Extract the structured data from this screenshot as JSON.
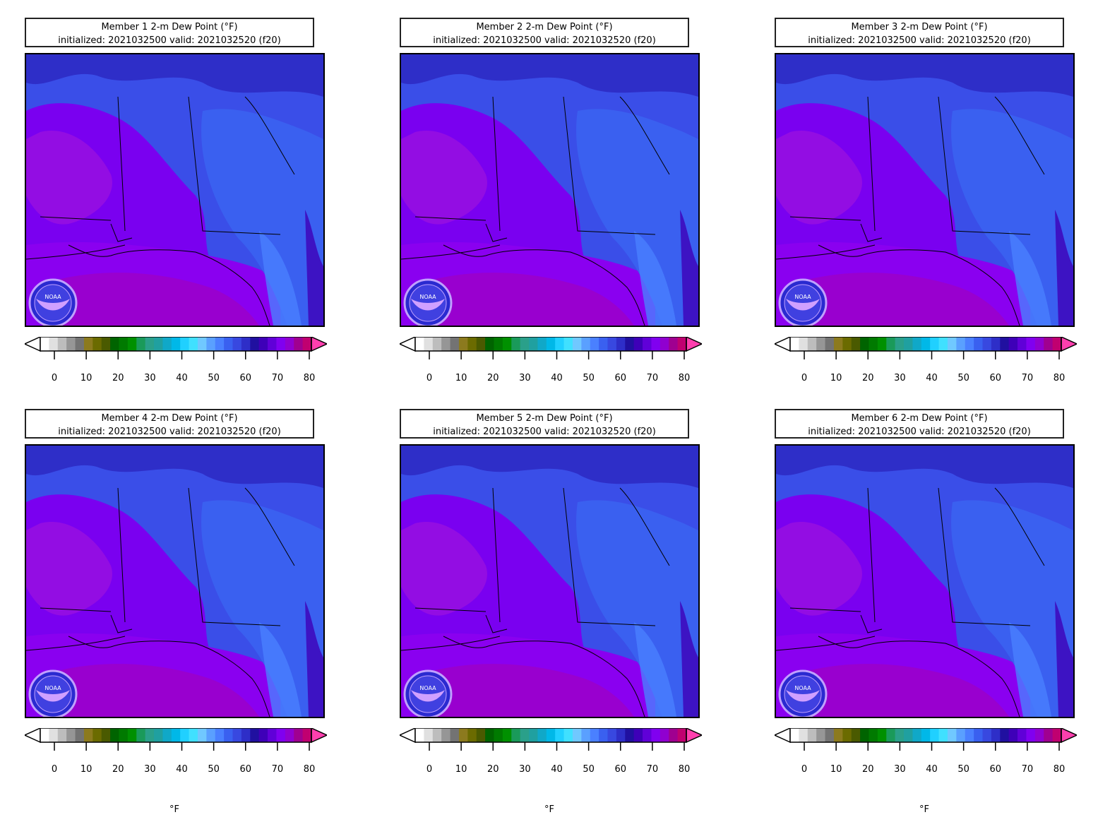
{
  "panels": [
    {
      "title_line1": "Member 1 2-m Dew Point (°F)",
      "title_line2": "initialized: 2021032500 valid: 2021032520 (f20)",
      "unit": ""
    },
    {
      "title_line1": "Member 2 2-m Dew Point (°F)",
      "title_line2": "initialized: 2021032500 valid: 2021032520 (f20)",
      "unit": ""
    },
    {
      "title_line1": "Member 3 2-m Dew Point (°F)",
      "title_line2": "initialized: 2021032500 valid: 2021032520 (f20)",
      "unit": ""
    },
    {
      "title_line1": "Member 4 2-m Dew Point (°F)",
      "title_line2": "initialized: 2021032500 valid: 2021032520 (f20)",
      "unit": "°F"
    },
    {
      "title_line1": "Member 5 2-m Dew Point (°F)",
      "title_line2": "initialized: 2021032500 valid: 2021032520 (f20)",
      "unit": "°F"
    },
    {
      "title_line1": "Member 6 2-m Dew Point (°F)",
      "title_line2": "initialized: 2021032500 valid: 2021032520 (f20)",
      "unit": "°F"
    }
  ],
  "colorbar": {
    "ticks": [
      "0",
      "10",
      "20",
      "30",
      "40",
      "50",
      "60",
      "70",
      "80"
    ],
    "colors": [
      "#ffffff",
      "#e0e0e0",
      "#bdbdbd",
      "#969696",
      "#737373",
      "#8c7a1e",
      "#6b6b00",
      "#4a5a00",
      "#006400",
      "#007a00",
      "#009000",
      "#1a9a5a",
      "#2aa08a",
      "#20a0a0",
      "#10a8c8",
      "#00b8e8",
      "#20d0ff",
      "#40e0ff",
      "#70c8ff",
      "#5aa0ff",
      "#4a80ff",
      "#3a60f0",
      "#3848e0",
      "#2e2ec8",
      "#2010a0",
      "#3e00b8",
      "#6000d8",
      "#8000f0",
      "#9000d0",
      "#a00090",
      "#c00070"
    ],
    "over_color": "#ff3fae",
    "under_color": "#ffffff"
  },
  "logo": {
    "text": "NOAA"
  }
}
